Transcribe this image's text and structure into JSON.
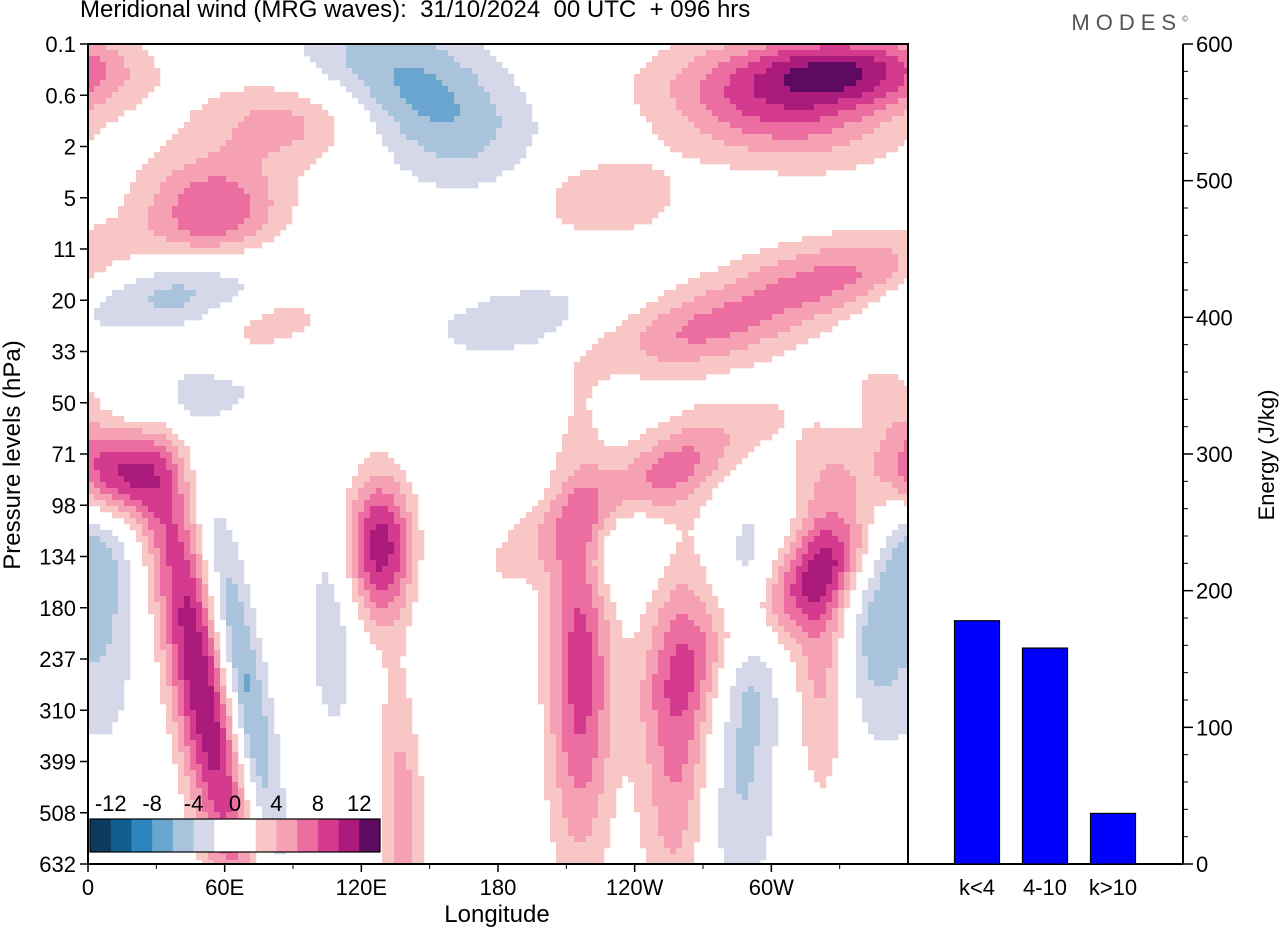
{
  "title": "Meridional wind (MRG waves):  31/10/2024  00 UTC  + 096 hrs",
  "logo": "MODES",
  "colors": {
    "neg": [
      "#0b3b5e",
      "#0f5e8c",
      "#2e85bd",
      "#6aa5cf",
      "#a9c3dd",
      "#d4d8e8"
    ],
    "pos": [
      "#f9c6c6",
      "#f5a0b3",
      "#ec6ea0",
      "#d43a8d",
      "#ab1b7c",
      "#5e0a63"
    ],
    "bar": "#0000ff"
  },
  "chart_data": [
    {
      "type": "heatmap",
      "title": "Meridional wind (MRG waves):  31/10/2024  00 UTC  + 096 hrs",
      "xlabel": "Longitude",
      "ylabel": "Pressure levels (hPa)",
      "x_ticks": [
        "0",
        "60E",
        "120E",
        "180",
        "120W",
        "60W"
      ],
      "x_tick_values": [
        0,
        60,
        120,
        180,
        240,
        300
      ],
      "xlim": [
        0,
        360
      ],
      "y_ticks": [
        "0.1",
        "0.6",
        "2",
        "5",
        "11",
        "20",
        "33",
        "50",
        "71",
        "98",
        "134",
        "180",
        "237",
        "310",
        "399",
        "508",
        "632"
      ],
      "colorbar": {
        "labels": [
          "-12",
          "-8",
          "-4",
          "0",
          "4",
          "8",
          "12"
        ],
        "levels": [
          -14,
          -12,
          -10,
          -8,
          -6,
          -4,
          -2,
          2,
          4,
          6,
          8,
          10,
          12,
          14
        ]
      },
      "features": [
        {
          "lon": 145,
          "lev": 1.0,
          "v": -7,
          "dlon": 30,
          "dlev": 1.2,
          "tilt": 14
        },
        {
          "lon": 90,
          "lev": 1.5,
          "v": 5,
          "dlon": 28,
          "dlev": 0.6,
          "tilt": 0
        },
        {
          "lon": 55,
          "lev": 3.3,
          "v": 8,
          "dlon": 22,
          "dlev": 0.8,
          "tilt": 0
        },
        {
          "lon": 28,
          "lev": 4.8,
          "v": -7,
          "dlon": 40,
          "dlev": 0.6,
          "tilt": -25
        },
        {
          "lon": 80,
          "lev": 5.5,
          "v": 4,
          "dlon": 20,
          "dlev": 0.6,
          "tilt": -15
        },
        {
          "lon": 40,
          "lev": 7.0,
          "v": -4,
          "dlon": 30,
          "dlev": 0.8,
          "tilt": -30
        },
        {
          "lon": 190,
          "lev": 5.4,
          "v": -4,
          "dlon": 25,
          "dlev": 0.5,
          "tilt": -20
        },
        {
          "lon": 270,
          "lev": 5.6,
          "v": 6,
          "dlon": 30,
          "dlev": 0.6,
          "tilt": -20
        },
        {
          "lon": 337,
          "lev": 4.6,
          "v": 8,
          "dlon": 35,
          "dlev": 0.6,
          "tilt": -15
        },
        {
          "lon": 300,
          "lev": 1.2,
          "v": 8,
          "dlon": 35,
          "dlev": 0.8,
          "tilt": 10
        },
        {
          "lon": 335,
          "lev": 0.5,
          "v": 10,
          "dlon": 30,
          "dlev": 0.5,
          "tilt": 0
        },
        {
          "lon": 225,
          "lev": 3.0,
          "v": 4,
          "dlon": 25,
          "dlev": 0.6,
          "tilt": 0
        },
        {
          "lon": 6,
          "lev": 7.8,
          "v": 6,
          "dlon": 14,
          "dlev": 1.0,
          "tilt": 10
        },
        {
          "lon": 240,
          "lev": 8.7,
          "v": 7,
          "dlon": 22,
          "dlev": 1.1,
          "tilt": -30
        },
        {
          "lon": 350,
          "lev": 8.3,
          "v": 5,
          "dlon": 25,
          "dlev": 0.6,
          "tilt": 0
        },
        {
          "lon": 355,
          "lev": 9.4,
          "v": -7,
          "dlon": 12,
          "dlev": 0.8,
          "tilt": 0
        },
        {
          "lon": 330,
          "lev": 10.0,
          "v": 8,
          "dlon": 20,
          "dlev": 1.5,
          "tilt": -25
        },
        {
          "lon": 230,
          "lev": 9.5,
          "v": -5,
          "dlon": 18,
          "dlev": 0.8,
          "tilt": 0
        },
        {
          "lon": 128,
          "lev": 9.8,
          "v": 11,
          "dlon": 12,
          "dlev": 1.0,
          "tilt": 0
        },
        {
          "lon": 50,
          "lev": 12.5,
          "v": 12,
          "dlon": 10,
          "dlev": 3.0,
          "tilt": 4
        },
        {
          "lon": 68,
          "lev": 12.5,
          "v": -8,
          "dlon": 7,
          "dlev": 2.4,
          "tilt": 4
        },
        {
          "lon": 8,
          "lev": 11.0,
          "v": -4,
          "dlon": 10,
          "dlev": 2.0,
          "tilt": 0
        },
        {
          "lon": 145,
          "lev": 12.6,
          "v": -4,
          "dlon": 8,
          "dlev": 2.6,
          "tilt": 0
        },
        {
          "lon": 216,
          "lev": 12.0,
          "v": 9,
          "dlon": 10,
          "dlev": 2.8,
          "tilt": 0
        },
        {
          "lon": 260,
          "lev": 13.4,
          "v": 8,
          "dlon": 12,
          "dlev": 2.6,
          "tilt": 0
        },
        {
          "lon": 322,
          "lev": 11.6,
          "v": 5,
          "dlon": 9,
          "dlev": 2.2,
          "tilt": 0
        },
        {
          "lon": 345,
          "lev": 11.5,
          "v": -5,
          "dlon": 10,
          "dlev": 1.5,
          "tilt": 0
        },
        {
          "lon": 140,
          "lev": 14.5,
          "v": 7,
          "dlon": 8,
          "dlev": 2.4,
          "tilt": 0
        },
        {
          "lon": 290,
          "lev": 11.6,
          "v": -5,
          "dlon": 10,
          "dlev": 1.8,
          "tilt": 0
        },
        {
          "lon": 108,
          "lev": 11.0,
          "v": -4,
          "dlon": 8,
          "dlev": 1.8,
          "tilt": 0
        },
        {
          "lon": 280,
          "lev": 15.0,
          "v": -4,
          "dlon": 15,
          "dlev": 1.5,
          "tilt": 0
        }
      ]
    },
    {
      "type": "bar",
      "categories": [
        "k<4",
        "4-10",
        "k>10"
      ],
      "values": [
        178,
        158,
        37
      ],
      "ylabel": "Energy (J/kg)",
      "ylim": [
        0,
        600
      ],
      "yticks": [
        0,
        100,
        200,
        300,
        400,
        500,
        600
      ]
    }
  ]
}
